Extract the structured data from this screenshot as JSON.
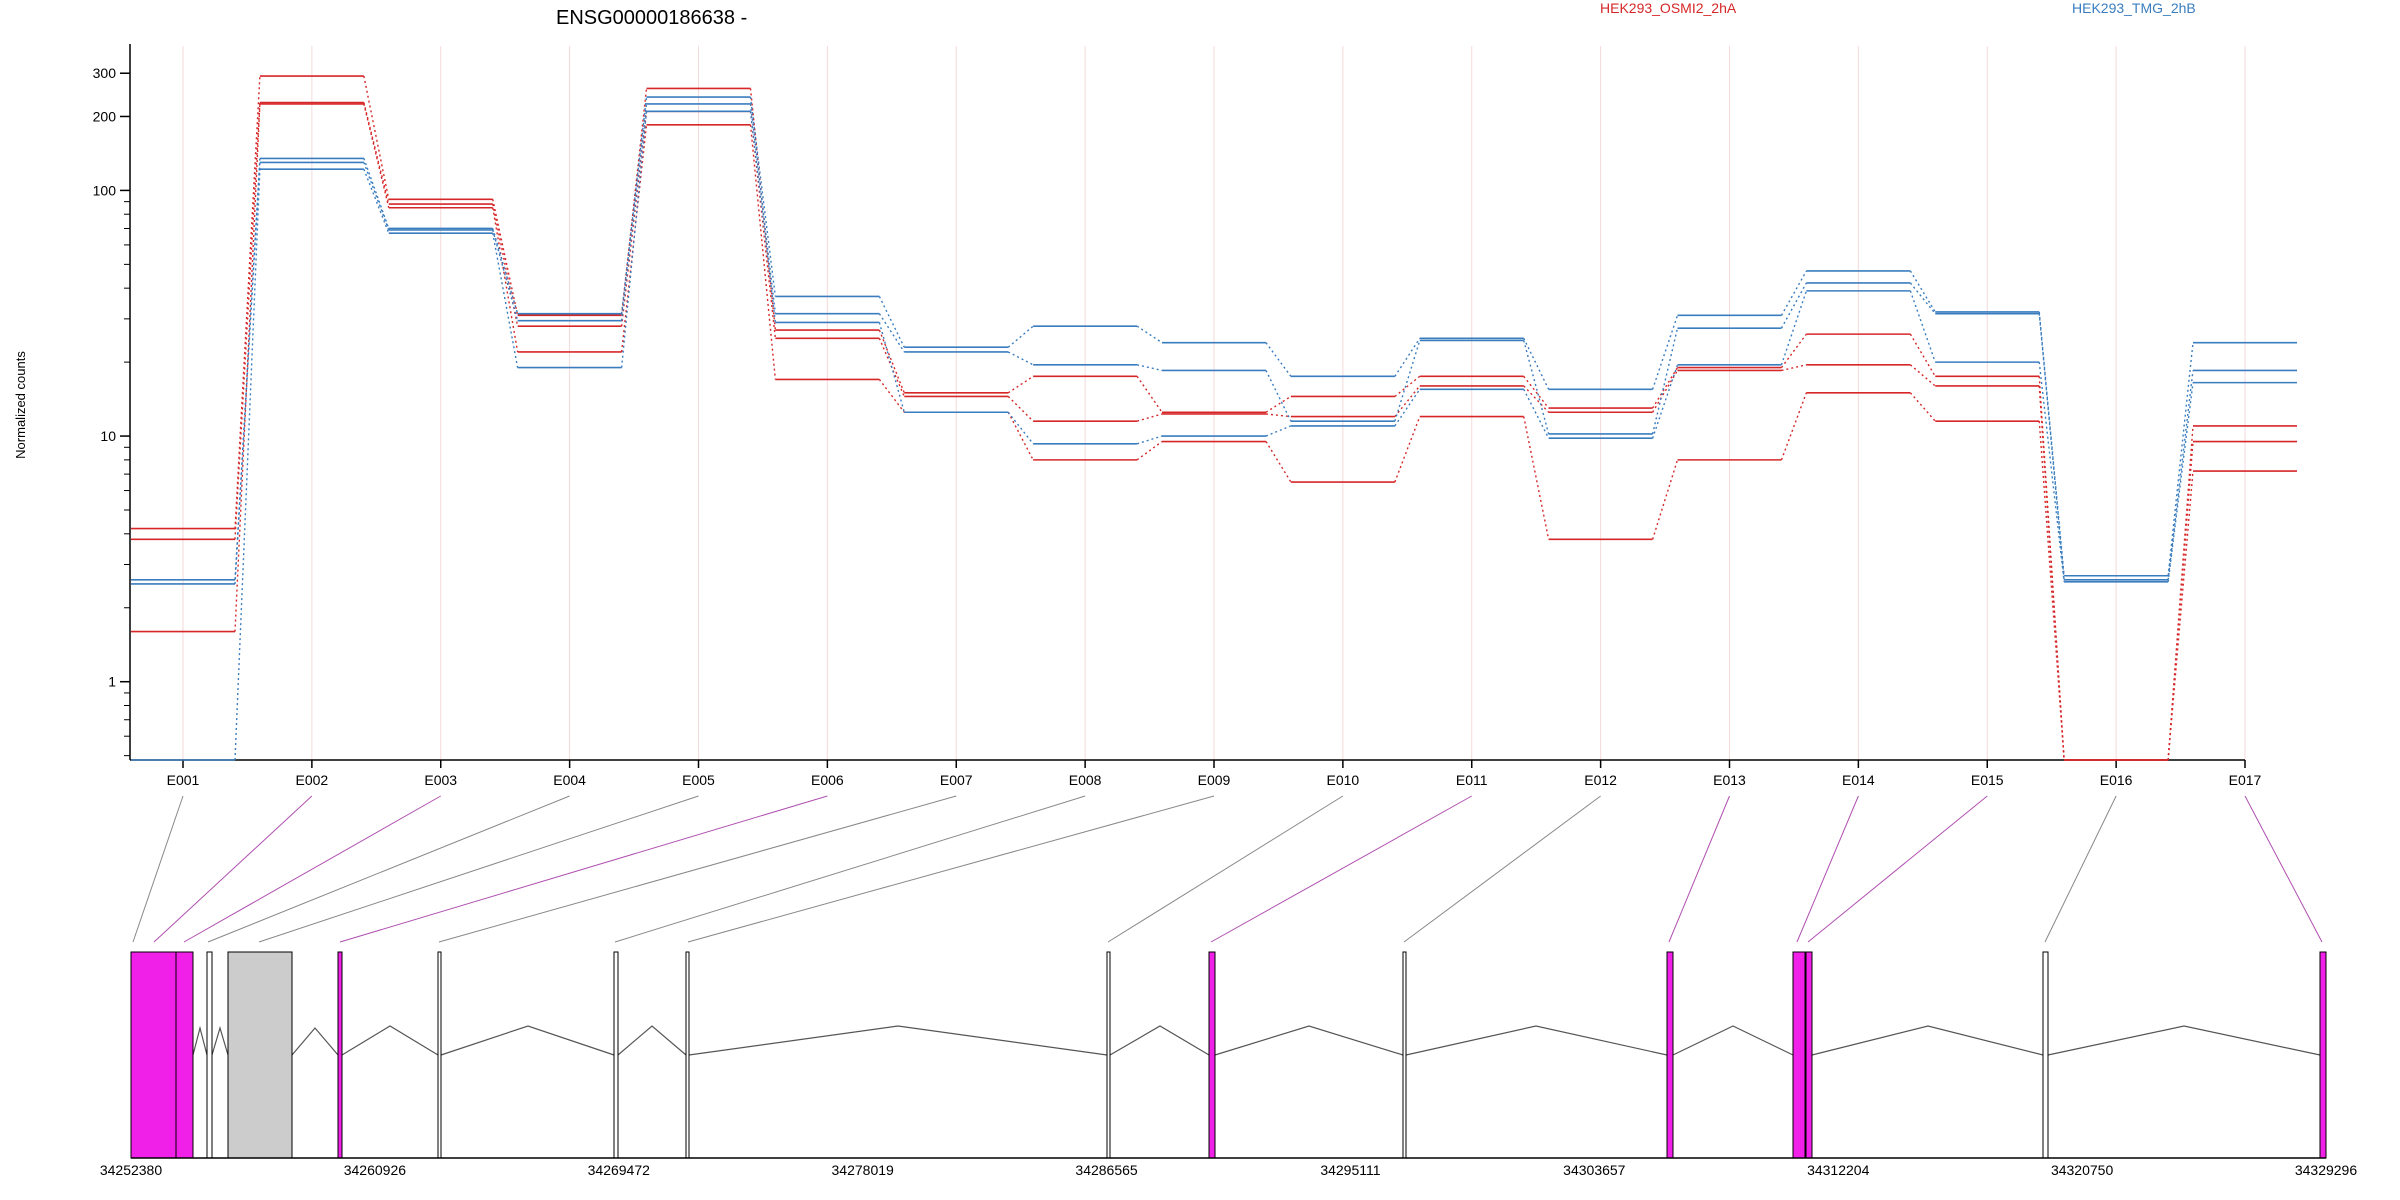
{
  "chart_data": {
    "type": "line",
    "title": "ENSG00000186638 -",
    "ylabel": "Normalized counts",
    "xlabel": "",
    "y_scale": "log",
    "y_ticks": [
      1,
      10,
      100,
      200,
      300
    ],
    "ylim": [
      0.48,
      380
    ],
    "categories": [
      "E001",
      "E002",
      "E003",
      "E004",
      "E005",
      "E006",
      "E007",
      "E008",
      "E009",
      "E010",
      "E011",
      "E012",
      "E013",
      "E014",
      "E015",
      "E016",
      "E017"
    ],
    "legend": [
      {
        "label": "HEK293_OSMI2_2hA",
        "color": "#d62728"
      },
      {
        "label": "HEK293_TMG_2hB",
        "color": "#3a7dbf"
      }
    ],
    "series": [
      {
        "group": "HEK293_OSMI2_2hA",
        "color": "#d62728",
        "values": [
          4.2,
          292,
          92,
          31,
          260,
          27,
          15,
          17.5,
          12.5,
          14.5,
          17.5,
          13,
          19,
          26,
          17.5,
          0.48,
          11
        ]
      },
      {
        "group": "HEK293_OSMI2_2hA",
        "color": "#d62728",
        "values": [
          3.8,
          228,
          88,
          28,
          210,
          25,
          14.5,
          11.5,
          12.3,
          12,
          16,
          12.5,
          18.5,
          19.5,
          16,
          0.48,
          9.5
        ]
      },
      {
        "group": "HEK293_OSMI2_2hA",
        "color": "#d62728",
        "values": [
          1.6,
          225,
          85,
          22,
          185,
          17,
          12.5,
          8,
          9.5,
          6.5,
          12,
          3.8,
          8,
          15,
          11.5,
          0.48,
          7.2
        ]
      },
      {
        "group": "HEK293_TMG_2hB",
        "color": "#3a7dbf",
        "values": [
          2.6,
          135,
          70,
          31.5,
          240,
          37,
          23,
          28,
          24,
          17.5,
          25,
          15.5,
          31,
          47,
          32,
          2.7,
          24
        ]
      },
      {
        "group": "HEK293_TMG_2hB",
        "color": "#3a7dbf",
        "values": [
          2.5,
          130,
          69,
          29.5,
          225,
          31.5,
          22,
          19.5,
          18.5,
          11.5,
          24.5,
          10.2,
          27.5,
          42,
          31.5,
          2.6,
          18.5
        ]
      },
      {
        "group": "HEK293_TMG_2hB",
        "color": "#3a7dbf",
        "values": [
          0.48,
          122,
          67,
          19,
          210,
          29,
          12.5,
          9.3,
          10,
          11,
          15.5,
          9.8,
          19.5,
          39,
          20,
          2.55,
          16.5
        ]
      }
    ],
    "gene_model": {
      "coordinate_labels": [
        "34252380",
        "34260926",
        "34269472",
        "34278019",
        "34286565",
        "34295111",
        "34303657",
        "34312204",
        "34320750",
        "34329296"
      ],
      "exon_colors": {
        "significant": "#f020e8",
        "normal": "#ffffff",
        "outline": "#000000",
        "gray": "#cccccc"
      }
    }
  }
}
